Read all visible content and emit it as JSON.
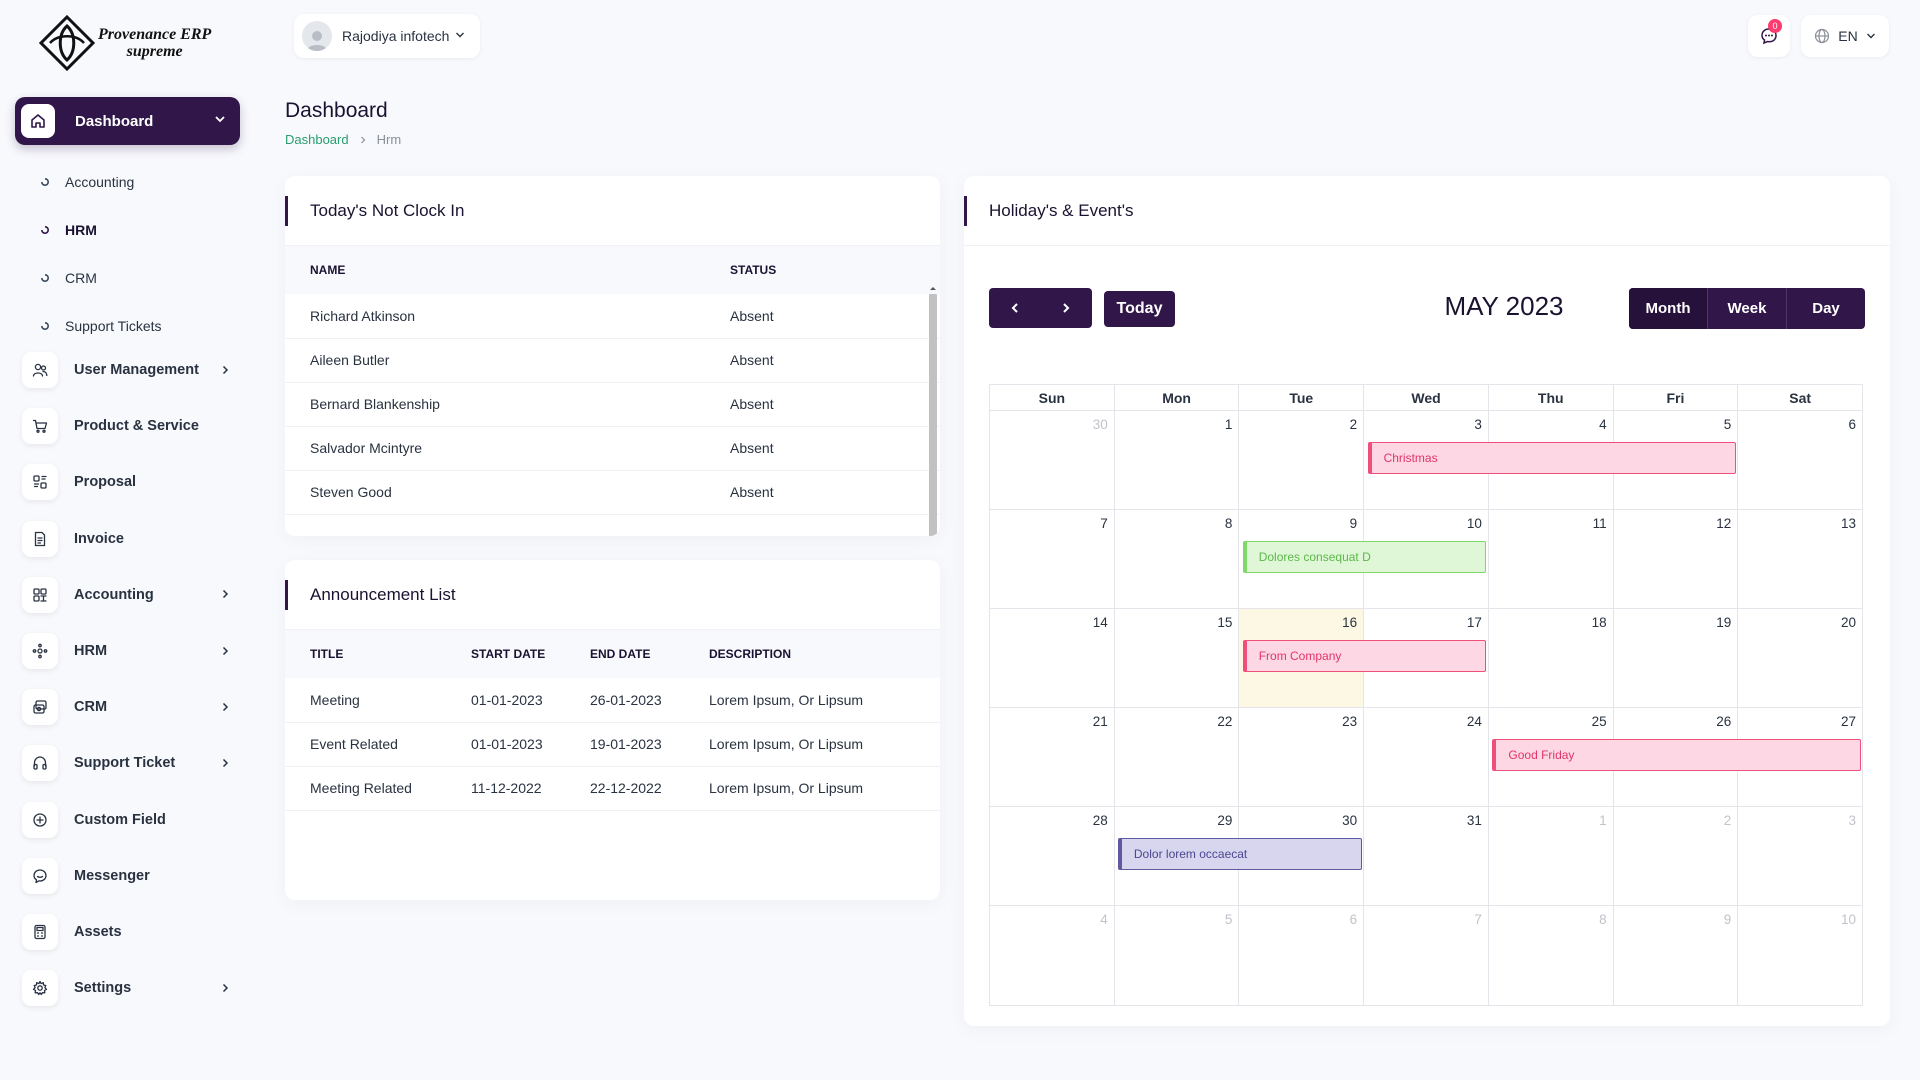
{
  "brand": {
    "line1": "Provenance ERP",
    "line2": "supreme"
  },
  "sidebar": {
    "main_item": {
      "label": "Dashboard",
      "icon": "home-icon"
    },
    "sub_items": [
      {
        "label": "Accounting"
      },
      {
        "label": "HRM"
      },
      {
        "label": "CRM"
      },
      {
        "label": "Support Tickets"
      }
    ],
    "items": [
      {
        "label": "User Management",
        "icon": "users-icon",
        "has_chevron": true
      },
      {
        "label": "Product & Service",
        "icon": "cart-icon",
        "has_chevron": false
      },
      {
        "label": "Proposal",
        "icon": "proposal-icon",
        "has_chevron": false
      },
      {
        "label": "Invoice",
        "icon": "invoice-icon",
        "has_chevron": false
      },
      {
        "label": "Accounting",
        "icon": "grid-icon",
        "has_chevron": true
      },
      {
        "label": "HRM",
        "icon": "hrm-icon",
        "has_chevron": true
      },
      {
        "label": "CRM",
        "icon": "crm-icon",
        "has_chevron": true
      },
      {
        "label": "Support Ticket",
        "icon": "headphones-icon",
        "has_chevron": true
      },
      {
        "label": "Custom Field",
        "icon": "plus-circle-icon",
        "has_chevron": false
      },
      {
        "label": "Messenger",
        "icon": "chat-icon",
        "has_chevron": false
      },
      {
        "label": "Assets",
        "icon": "calculator-icon",
        "has_chevron": false
      },
      {
        "label": "Settings",
        "icon": "gear-icon",
        "has_chevron": true
      }
    ]
  },
  "header": {
    "company": "Rajodiya infotech",
    "notification_count": "0",
    "language": "EN"
  },
  "page": {
    "title": "Dashboard",
    "breadcrumb": {
      "link": "Dashboard",
      "current": "Hrm"
    }
  },
  "not_clock_in": {
    "title": "Today's Not Clock In",
    "columns": [
      "NAME",
      "STATUS"
    ],
    "rows": [
      {
        "name": "Richard Atkinson",
        "status": "Absent"
      },
      {
        "name": "Aileen Butler",
        "status": "Absent"
      },
      {
        "name": "Bernard Blankenship",
        "status": "Absent"
      },
      {
        "name": "Salvador Mcintyre",
        "status": "Absent"
      },
      {
        "name": "Steven Good",
        "status": "Absent"
      }
    ]
  },
  "announcements": {
    "title": "Announcement List",
    "columns": [
      "TITLE",
      "START DATE",
      "END DATE",
      "DESCRIPTION"
    ],
    "rows": [
      {
        "title": "Meeting",
        "start": "01-01-2023",
        "end": "26-01-2023",
        "desc": "Lorem Ipsum, Or Lipsum"
      },
      {
        "title": "Event Related",
        "start": "01-01-2023",
        "end": "19-01-2023",
        "desc": "Lorem Ipsum, Or Lipsum"
      },
      {
        "title": "Meeting Related",
        "start": "11-12-2022",
        "end": "22-12-2022",
        "desc": "Lorem Ipsum, Or Lipsum"
      }
    ]
  },
  "calendar": {
    "card_title": "Holiday's & Event's",
    "month_title": "MAY 2023",
    "today_label": "Today",
    "views": [
      "Month",
      "Week",
      "Day"
    ],
    "days_of_week": [
      "Sun",
      "Mon",
      "Tue",
      "Wed",
      "Thu",
      "Fri",
      "Sat"
    ],
    "weeks": [
      [
        "30",
        "1",
        "2",
        "3",
        "4",
        "5",
        "6"
      ],
      [
        "7",
        "8",
        "9",
        "10",
        "11",
        "12",
        "13"
      ],
      [
        "14",
        "15",
        "16",
        "17",
        "18",
        "19",
        "20"
      ],
      [
        "21",
        "22",
        "23",
        "24",
        "25",
        "26",
        "27"
      ],
      [
        "28",
        "29",
        "30",
        "31",
        "1",
        "2",
        "3"
      ],
      [
        "4",
        "5",
        "6",
        "7",
        "8",
        "9",
        "10"
      ]
    ],
    "other_month": [
      [
        0
      ],
      [],
      [],
      [],
      [
        4,
        5,
        6
      ],
      [
        0,
        1,
        2,
        3,
        4,
        5,
        6
      ]
    ],
    "today": {
      "week": 2,
      "day": 2
    },
    "events": [
      {
        "title": "Christmas",
        "week": 0,
        "start_day": 3,
        "end_day": 5,
        "color": "pink"
      },
      {
        "title": "Dolores consequat D",
        "week": 1,
        "start_day": 2,
        "end_day": 3,
        "color": "green"
      },
      {
        "title": "From Company",
        "week": 2,
        "start_day": 2,
        "end_day": 3,
        "color": "pink"
      },
      {
        "title": "Good Friday",
        "week": 3,
        "start_day": 4,
        "end_day": 6,
        "color": "pink"
      },
      {
        "title": "Dolor lorem occaecat",
        "week": 4,
        "start_day": 1,
        "end_day": 2,
        "color": "purple"
      }
    ]
  },
  "colors": {
    "primary": "#311749",
    "link": "#2a9d6f",
    "event_pink": "#f04f7c",
    "event_green": "#7ed96a",
    "event_purple": "#5f5a9f"
  }
}
